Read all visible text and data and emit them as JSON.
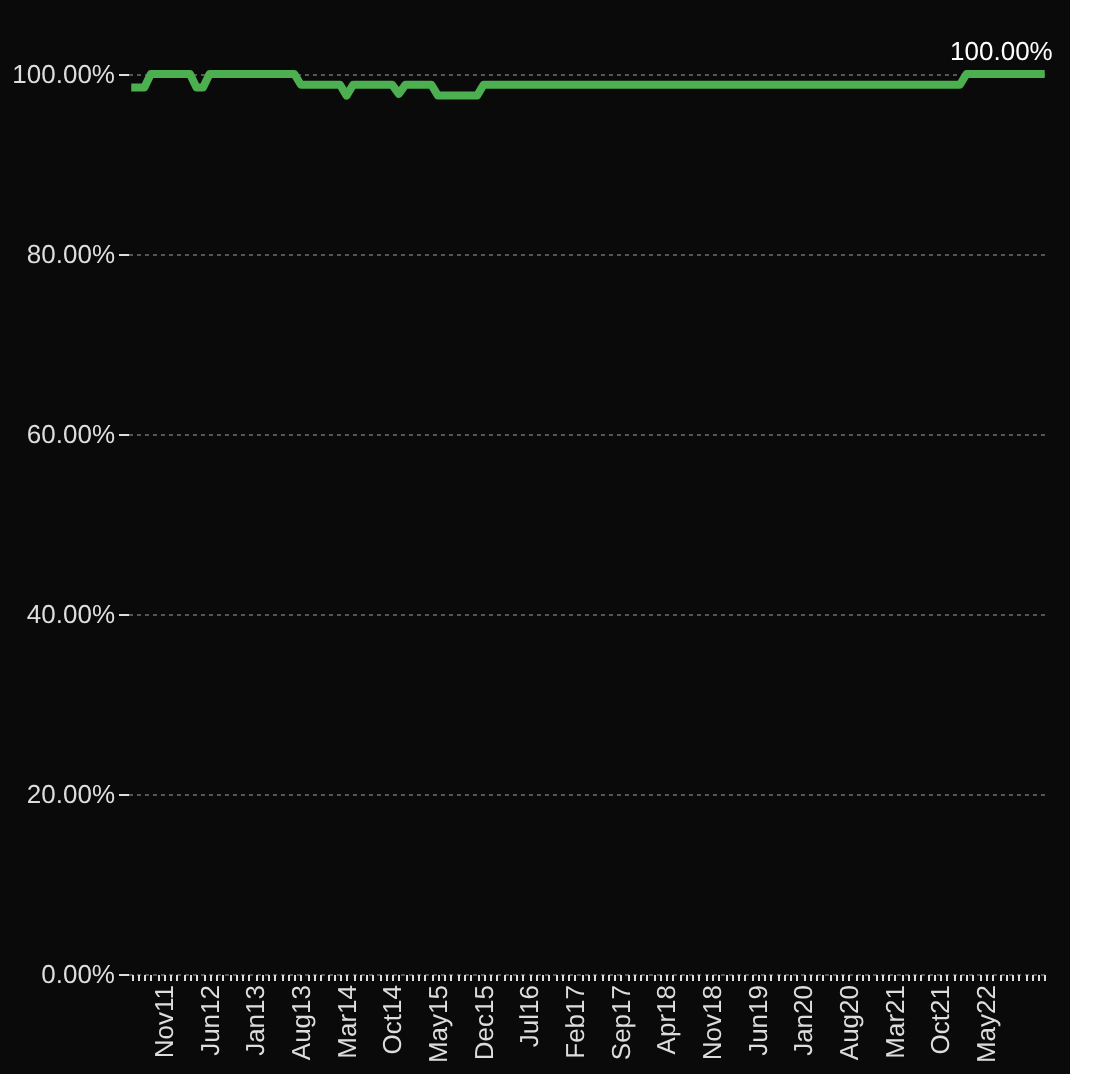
{
  "chart_data": {
    "type": "line",
    "categories": [
      null,
      null,
      null,
      null,
      null,
      "Nov11",
      null,
      null,
      null,
      null,
      null,
      null,
      "Jun12",
      null,
      null,
      null,
      null,
      null,
      null,
      "Jan13",
      null,
      null,
      null,
      null,
      null,
      null,
      "Aug13",
      null,
      null,
      null,
      null,
      null,
      null,
      "Mar14",
      null,
      null,
      null,
      null,
      null,
      null,
      "Oct14",
      null,
      null,
      null,
      null,
      null,
      null,
      "May15",
      null,
      null,
      null,
      null,
      null,
      null,
      "Dec15",
      null,
      null,
      null,
      null,
      null,
      null,
      "Jul16",
      null,
      null,
      null,
      null,
      null,
      null,
      "Feb17",
      null,
      null,
      null,
      null,
      null,
      null,
      "Sep17",
      null,
      null,
      null,
      null,
      null,
      null,
      "Apr18",
      null,
      null,
      null,
      null,
      null,
      null,
      "Nov18",
      null,
      null,
      null,
      null,
      null,
      null,
      "Jun19",
      null,
      null,
      null,
      null,
      null,
      null,
      "Jan20",
      null,
      null,
      null,
      null,
      null,
      null,
      "Aug20",
      null,
      null,
      null,
      null,
      null,
      null,
      "Mar21",
      null,
      null,
      null,
      null,
      null,
      null,
      "Oct21",
      null,
      null,
      null,
      null,
      null,
      null,
      "May22",
      null,
      null,
      null,
      null,
      null,
      null,
      null,
      null,
      null
    ],
    "series": [
      {
        "color": "#4caf50",
        "values": [
          98.5,
          98.5,
          98.5,
          100,
          100,
          100,
          100,
          100,
          100,
          100,
          98.5,
          98.5,
          100,
          100,
          100,
          100,
          100,
          100,
          100,
          100,
          100,
          100,
          100,
          100,
          100,
          100,
          98.8,
          98.8,
          98.8,
          98.8,
          98.8,
          98.8,
          98.8,
          97.6,
          98.8,
          98.8,
          98.8,
          98.8,
          98.8,
          98.8,
          98.8,
          97.8,
          98.8,
          98.8,
          98.8,
          98.8,
          98.8,
          97.6,
          97.6,
          97.6,
          97.6,
          97.6,
          97.6,
          97.6,
          98.8,
          98.8,
          98.8,
          98.8,
          98.8,
          98.8,
          98.8,
          98.8,
          98.8,
          98.8,
          98.8,
          98.8,
          98.8,
          98.8,
          98.8,
          98.8,
          98.8,
          98.8,
          98.8,
          98.8,
          98.8,
          98.8,
          98.8,
          98.8,
          98.8,
          98.8,
          98.8,
          98.8,
          98.8,
          98.8,
          98.8,
          98.8,
          98.8,
          98.8,
          98.8,
          98.8,
          98.8,
          98.8,
          98.8,
          98.8,
          98.8,
          98.8,
          98.8,
          98.8,
          98.8,
          98.8,
          98.8,
          98.8,
          98.8,
          98.8,
          98.8,
          98.8,
          98.8,
          98.8,
          98.8,
          98.8,
          98.8,
          98.8,
          98.8,
          98.8,
          98.8,
          98.8,
          98.8,
          98.8,
          98.8,
          98.8,
          98.8,
          98.8,
          98.8,
          98.8,
          98.8,
          98.8,
          98.8,
          98.8,
          100,
          100,
          100,
          100,
          100,
          100,
          100,
          100,
          100,
          100,
          100,
          100,
          100
        ],
        "value_labels": [
          null,
          null,
          null,
          null,
          null,
          null,
          null,
          null,
          null,
          null,
          null,
          null,
          null,
          null,
          null,
          null,
          null,
          null,
          null,
          null,
          null,
          null,
          null,
          null,
          null,
          null,
          null,
          null,
          null,
          null,
          null,
          null,
          null,
          null,
          null,
          null,
          null,
          null,
          null,
          null,
          null,
          null,
          null,
          null,
          null,
          null,
          null,
          null,
          null,
          null,
          null,
          null,
          null,
          null,
          null,
          null,
          null,
          null,
          null,
          null,
          null,
          null,
          null,
          null,
          null,
          null,
          null,
          null,
          null,
          null,
          null,
          null,
          null,
          null,
          null,
          null,
          null,
          null,
          null,
          null,
          null,
          null,
          null,
          null,
          null,
          null,
          null,
          null,
          null,
          null,
          null,
          null,
          null,
          null,
          null,
          null,
          null,
          null,
          null,
          null,
          null,
          null,
          null,
          null,
          null,
          null,
          null,
          null,
          null,
          null,
          null,
          null,
          null,
          null,
          null,
          null,
          null,
          null,
          null,
          null,
          null,
          null,
          null,
          null,
          null,
          null,
          null,
          null,
          null,
          null,
          null,
          null,
          null,
          null,
          null,
          null,
          null,
          null,
          null,
          null,
          "100.00%"
        ]
      }
    ],
    "ylim": [
      0,
      100
    ],
    "yticks": [
      {
        "value": 0,
        "label": "0.00%"
      },
      {
        "value": 20,
        "label": "20.00%"
      },
      {
        "value": 40,
        "label": "40.00%"
      },
      {
        "value": 60,
        "label": "60.00%"
      },
      {
        "value": 80,
        "label": "80.00%"
      },
      {
        "value": 100,
        "label": "100.00%"
      }
    ],
    "grid": "y",
    "marker": "none",
    "line_style": "solid"
  }
}
